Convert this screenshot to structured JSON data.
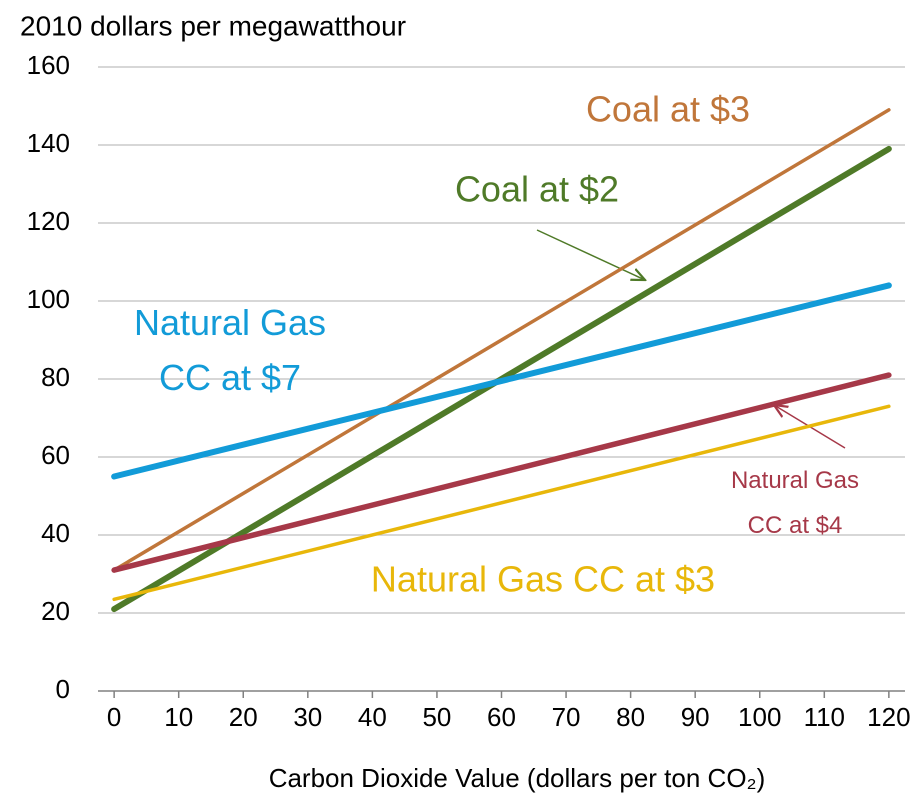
{
  "chart_data": {
    "type": "line",
    "title": "2010 dollars per megawatthour",
    "x_label": "Carbon Dioxide Value (dollars per ton CO₂)",
    "xlim": [
      -2.5,
      122.5
    ],
    "xticks": [
      0,
      10,
      20,
      30,
      40,
      50,
      60,
      70,
      80,
      90,
      100,
      110,
      120
    ],
    "ylim": [
      0,
      160
    ],
    "yticks": [
      0,
      20,
      40,
      60,
      80,
      100,
      120,
      140,
      160
    ],
    "grid": true,
    "series": [
      {
        "name": "Coal at $3",
        "color": "#c0763a",
        "x": [
          0,
          120
        ],
        "values": [
          31,
          149
        ]
      },
      {
        "name": "Coal at $2",
        "color": "#4f7a28",
        "x": [
          0,
          120
        ],
        "values": [
          21,
          139
        ]
      },
      {
        "name": "Natural Gas\nCC at $7",
        "color": "#129bd8",
        "x": [
          0,
          120
        ],
        "values": [
          55,
          104
        ]
      },
      {
        "name": "Natural Gas\nCC at $4",
        "color": "#a63848",
        "x": [
          0,
          120
        ],
        "values": [
          31,
          81
        ]
      },
      {
        "name": "Natural Gas CC at $3",
        "color": "#e8b70a",
        "x": [
          0,
          120
        ],
        "values": [
          23.5,
          73
        ]
      }
    ]
  }
}
